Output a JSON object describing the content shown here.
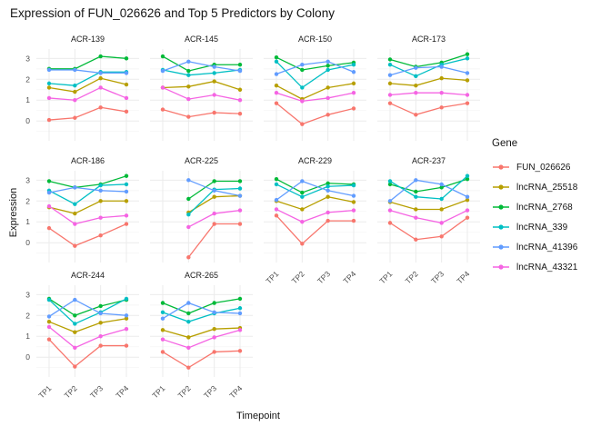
{
  "title": "Expression of FUN_026626 and Top 5 Predictors by Colony",
  "axes": {
    "x_title": "Timepoint",
    "y_title": "Expression",
    "x_ticks": [
      "TP1",
      "TP2",
      "TP3",
      "TP4"
    ],
    "y_ticks": [
      0,
      1,
      2,
      3
    ]
  },
  "legend": {
    "title": "Gene",
    "position": "right",
    "entries": [
      {
        "label": "FUN_026626",
        "color": "#F8766D"
      },
      {
        "label": "lncRNA_25518",
        "color": "#B79F00"
      },
      {
        "label": "lncRNA_2768",
        "color": "#00BA38"
      },
      {
        "label": "lncRNA_339",
        "color": "#00BFC4"
      },
      {
        "label": "lncRNA_41396",
        "color": "#619CFF"
      },
      {
        "label": "lncRNA_43321",
        "color": "#F564E3"
      }
    ]
  },
  "chart_data": {
    "type": "line",
    "facet_by": "Colony",
    "grid": "on",
    "x": [
      "TP1",
      "TP2",
      "TP3",
      "TP4"
    ],
    "ylim": [
      -0.95,
      3.45
    ],
    "facets": [
      {
        "colony": "ACR-139",
        "series": [
          {
            "name": "FUN_026626",
            "values": [
              0.05,
              0.15,
              0.65,
              0.45
            ]
          },
          {
            "name": "lncRNA_25518",
            "values": [
              1.6,
              1.4,
              2.05,
              1.75
            ]
          },
          {
            "name": "lncRNA_2768",
            "values": [
              2.5,
              2.5,
              3.1,
              3.0
            ]
          },
          {
            "name": "lncRNA_339",
            "values": [
              1.8,
              1.7,
              2.35,
              2.35
            ]
          },
          {
            "name": "lncRNA_41396",
            "values": [
              2.45,
              2.45,
              2.3,
              2.3
            ]
          },
          {
            "name": "lncRNA_43321",
            "values": [
              1.1,
              1.0,
              1.6,
              1.1
            ]
          }
        ]
      },
      {
        "colony": "ACR-145",
        "series": [
          {
            "name": "FUN_026626",
            "values": [
              0.55,
              0.2,
              0.4,
              0.35
            ]
          },
          {
            "name": "lncRNA_25518",
            "values": [
              1.6,
              1.65,
              1.9,
              1.5
            ]
          },
          {
            "name": "lncRNA_2768",
            "values": [
              3.1,
              2.4,
              2.7,
              2.7
            ]
          },
          {
            "name": "lncRNA_339",
            "values": [
              2.45,
              2.2,
              2.3,
              2.45
            ]
          },
          {
            "name": "lncRNA_41396",
            "values": [
              2.4,
              2.85,
              2.6,
              2.4
            ]
          },
          {
            "name": "lncRNA_43321",
            "values": [
              1.6,
              1.05,
              1.25,
              1.0
            ]
          }
        ]
      },
      {
        "colony": "ACR-150",
        "series": [
          {
            "name": "FUN_026626",
            "values": [
              0.85,
              -0.15,
              0.3,
              0.6
            ]
          },
          {
            "name": "lncRNA_25518",
            "values": [
              1.7,
              1.05,
              1.6,
              1.8
            ]
          },
          {
            "name": "lncRNA_2768",
            "values": [
              3.05,
              2.45,
              2.65,
              2.8
            ]
          },
          {
            "name": "lncRNA_339",
            "values": [
              2.85,
              1.6,
              2.45,
              2.7
            ]
          },
          {
            "name": "lncRNA_41396",
            "values": [
              2.25,
              2.7,
              2.85,
              2.35
            ]
          },
          {
            "name": "lncRNA_43321",
            "values": [
              1.35,
              0.95,
              1.1,
              1.35
            ]
          }
        ]
      },
      {
        "colony": "ACR-173",
        "series": [
          {
            "name": "FUN_026626",
            "values": [
              0.85,
              0.3,
              0.65,
              0.85
            ]
          },
          {
            "name": "lncRNA_25518",
            "values": [
              1.8,
              1.7,
              2.05,
              1.95
            ]
          },
          {
            "name": "lncRNA_2768",
            "values": [
              2.95,
              2.6,
              2.8,
              3.2
            ]
          },
          {
            "name": "lncRNA_339",
            "values": [
              2.7,
              2.15,
              2.7,
              3.0
            ]
          },
          {
            "name": "lncRNA_41396",
            "values": [
              2.2,
              2.55,
              2.6,
              2.3
            ]
          },
          {
            "name": "lncRNA_43321",
            "values": [
              1.25,
              1.35,
              1.35,
              1.25
            ]
          }
        ]
      },
      {
        "colony": "ACR-186",
        "series": [
          {
            "name": "FUN_026626",
            "values": [
              0.7,
              -0.15,
              0.35,
              0.9
            ]
          },
          {
            "name": "lncRNA_25518",
            "values": [
              1.7,
              1.4,
              2.0,
              2.0
            ]
          },
          {
            "name": "lncRNA_2768",
            "values": [
              2.95,
              2.65,
              2.8,
              3.2
            ]
          },
          {
            "name": "lncRNA_339",
            "values": [
              2.5,
              1.85,
              2.75,
              2.8
            ]
          },
          {
            "name": "lncRNA_41396",
            "values": [
              2.4,
              2.65,
              2.5,
              2.45
            ]
          },
          {
            "name": "lncRNA_43321",
            "values": [
              1.75,
              0.9,
              1.2,
              1.3
            ]
          }
        ]
      },
      {
        "colony": "ACR-225",
        "series": [
          {
            "name": "FUN_026626",
            "values": [
              null,
              -0.7,
              0.9,
              0.9
            ]
          },
          {
            "name": "lncRNA_25518",
            "values": [
              null,
              1.45,
              2.2,
              2.25
            ]
          },
          {
            "name": "lncRNA_2768",
            "values": [
              null,
              2.1,
              2.95,
              2.95
            ]
          },
          {
            "name": "lncRNA_339",
            "values": [
              null,
              1.35,
              2.55,
              2.6
            ]
          },
          {
            "name": "lncRNA_41396",
            "values": [
              null,
              3.0,
              2.5,
              2.25
            ]
          },
          {
            "name": "lncRNA_43321",
            "values": [
              null,
              0.75,
              1.4,
              1.55
            ]
          }
        ]
      },
      {
        "colony": "ACR-229",
        "series": [
          {
            "name": "FUN_026626",
            "values": [
              1.3,
              -0.05,
              1.05,
              1.05
            ]
          },
          {
            "name": "lncRNA_25518",
            "values": [
              2.0,
              1.6,
              2.2,
              1.95
            ]
          },
          {
            "name": "lncRNA_2768",
            "values": [
              3.05,
              2.4,
              2.85,
              2.8
            ]
          },
          {
            "name": "lncRNA_339",
            "values": [
              2.8,
              2.2,
              2.7,
              2.75
            ]
          },
          {
            "name": "lncRNA_41396",
            "values": [
              2.05,
              2.95,
              2.5,
              2.25
            ]
          },
          {
            "name": "lncRNA_43321",
            "values": [
              1.6,
              1.0,
              1.45,
              1.55
            ]
          }
        ]
      },
      {
        "colony": "ACR-237",
        "series": [
          {
            "name": "FUN_026626",
            "values": [
              0.95,
              0.15,
              0.3,
              1.2
            ]
          },
          {
            "name": "lncRNA_25518",
            "values": [
              1.95,
              1.6,
              1.6,
              2.05
            ]
          },
          {
            "name": "lncRNA_2768",
            "values": [
              2.8,
              2.45,
              2.65,
              3.05
            ]
          },
          {
            "name": "lncRNA_339",
            "values": [
              2.95,
              2.2,
              2.1,
              3.2
            ]
          },
          {
            "name": "lncRNA_41396",
            "values": [
              2.0,
              3.0,
              2.8,
              2.2
            ]
          },
          {
            "name": "lncRNA_43321",
            "values": [
              1.55,
              1.2,
              0.95,
              1.55
            ]
          }
        ]
      },
      {
        "colony": "ACR-244",
        "series": [
          {
            "name": "FUN_026626",
            "values": [
              0.85,
              -0.45,
              0.55,
              0.55
            ]
          },
          {
            "name": "lncRNA_25518",
            "values": [
              1.7,
              1.2,
              1.65,
              1.85
            ]
          },
          {
            "name": "lncRNA_2768",
            "values": [
              2.8,
              2.0,
              2.45,
              2.75
            ]
          },
          {
            "name": "lncRNA_339",
            "values": [
              2.75,
              1.6,
              2.15,
              2.8
            ]
          },
          {
            "name": "lncRNA_41396",
            "values": [
              1.95,
              2.75,
              2.1,
              2.0
            ]
          },
          {
            "name": "lncRNA_43321",
            "values": [
              1.45,
              0.45,
              1.0,
              1.35
            ]
          }
        ]
      },
      {
        "colony": "ACR-265",
        "series": [
          {
            "name": "FUN_026626",
            "values": [
              0.25,
              -0.5,
              0.25,
              0.3
            ]
          },
          {
            "name": "lncRNA_25518",
            "values": [
              1.3,
              0.95,
              1.35,
              1.4
            ]
          },
          {
            "name": "lncRNA_2768",
            "values": [
              2.6,
              2.1,
              2.6,
              2.8
            ]
          },
          {
            "name": "lncRNA_339",
            "values": [
              2.15,
              1.7,
              2.1,
              2.35
            ]
          },
          {
            "name": "lncRNA_41396",
            "values": [
              1.85,
              2.6,
              2.15,
              2.1
            ]
          },
          {
            "name": "lncRNA_43321",
            "values": [
              0.85,
              0.45,
              0.95,
              1.3
            ]
          }
        ]
      }
    ]
  }
}
